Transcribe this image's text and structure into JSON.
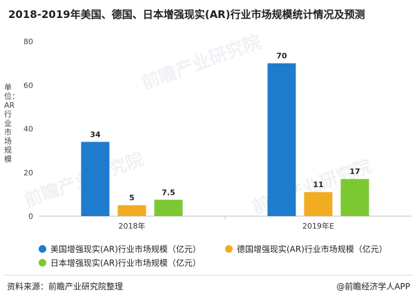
{
  "header": {
    "title": "2018-2019年美国、德国、日本增强现实(AR)行业市场规模统计情况及预测"
  },
  "chart_data": {
    "type": "bar",
    "categories": [
      "2018年",
      "2019年E"
    ],
    "series": [
      {
        "name": "美国增强现实(AR)行业市场规模（亿元）",
        "values": [
          34,
          70
        ],
        "labels": [
          "34",
          "70"
        ],
        "color": "#1f7bcc"
      },
      {
        "name": "德国增强现实(AR)行业市场规模（亿元）",
        "values": [
          5,
          11
        ],
        "labels": [
          "5",
          "11"
        ],
        "color": "#f2ac22"
      },
      {
        "name": "日本增强现实(AR)行业市场规模（亿元）",
        "values": [
          7.5,
          17
        ],
        "labels": [
          "7.5",
          "17"
        ],
        "color": "#7cc833"
      }
    ],
    "ylabel": "单位：AR行业市场规模",
    "ylim": [
      0,
      80
    ],
    "yticks": [
      0,
      20,
      40,
      60,
      80
    ],
    "grid": false,
    "legend_position": "bottom"
  },
  "footer": {
    "source": "资料来源：前瞻产业研究院整理",
    "credit": "@前瞻经济学人APP"
  },
  "watermark": {
    "text": "前瞻产业研究院"
  }
}
